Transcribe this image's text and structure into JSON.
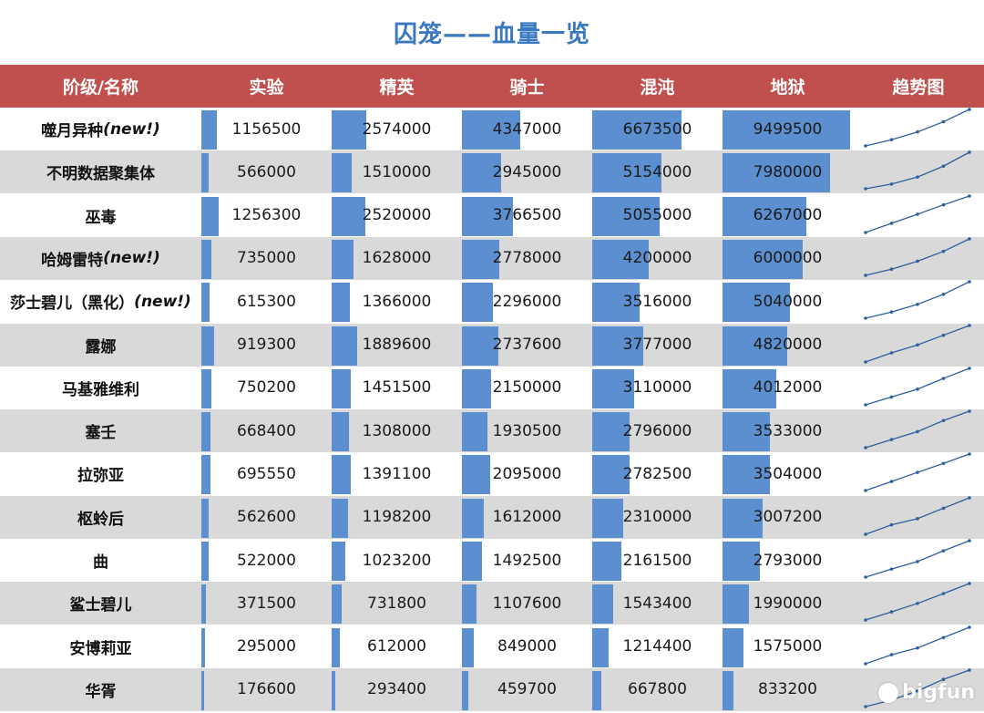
{
  "title": "囚笼——血量一览",
  "columns": [
    "阶级/名称",
    "实验",
    "精英",
    "骑士",
    "混沌",
    "地狱",
    "趋势图"
  ],
  "rows": [
    {
      "name": "噬月异种",
      "tag": "(new!)",
      "values": [
        1156500,
        2574000,
        4347000,
        6673500,
        9499500
      ]
    },
    {
      "name": "不明数据聚集体",
      "tag": "",
      "values": [
        566000,
        1510000,
        2945000,
        5154000,
        7980000
      ]
    },
    {
      "name": "巫毒",
      "tag": "",
      "values": [
        1256300,
        2520000,
        3766500,
        5055000,
        6267000
      ]
    },
    {
      "name": "哈姆雷特",
      "tag": "(new!)",
      "values": [
        735000,
        1628000,
        2778000,
        4200000,
        6000000
      ]
    },
    {
      "name": "莎士碧儿（黑化）",
      "tag": "(new!)",
      "values": [
        615300,
        1366000,
        2296000,
        3516000,
        5040000
      ]
    },
    {
      "name": "露娜",
      "tag": "",
      "values": [
        919300,
        1889600,
        2737600,
        3777000,
        4820000
      ]
    },
    {
      "name": "马基雅维利",
      "tag": "",
      "values": [
        750200,
        1451500,
        2150000,
        3110000,
        4012000
      ]
    },
    {
      "name": "塞壬",
      "tag": "",
      "values": [
        668400,
        1308000,
        1930500,
        2796000,
        3533000
      ]
    },
    {
      "name": "拉弥亚",
      "tag": "",
      "values": [
        695550,
        1391100,
        2095000,
        2782500,
        3504000
      ]
    },
    {
      "name": "枢蛉后",
      "tag": "",
      "values": [
        562600,
        1198200,
        1612000,
        2310000,
        3007200
      ]
    },
    {
      "name": "曲",
      "tag": "",
      "values": [
        522000,
        1023200,
        1492500,
        2161500,
        2793000
      ]
    },
    {
      "name": "鲨士碧儿",
      "tag": "",
      "values": [
        371500,
        731800,
        1107600,
        1543400,
        1990000
      ]
    },
    {
      "name": "安博莉亚",
      "tag": "",
      "values": [
        295000,
        612000,
        849000,
        1214400,
        1575000
      ]
    },
    {
      "name": "华胥",
      "tag": "",
      "values": [
        176600,
        293400,
        459700,
        667800,
        833200
      ]
    }
  ],
  "bar_max": 9499500,
  "colors": {
    "title": "#3a78c0",
    "header_bg": "#c0504d",
    "bar": "#5b8fcf",
    "alt_row": "#d9d9d9",
    "spark": "#2e5f9e"
  },
  "watermark": "bigfun"
}
